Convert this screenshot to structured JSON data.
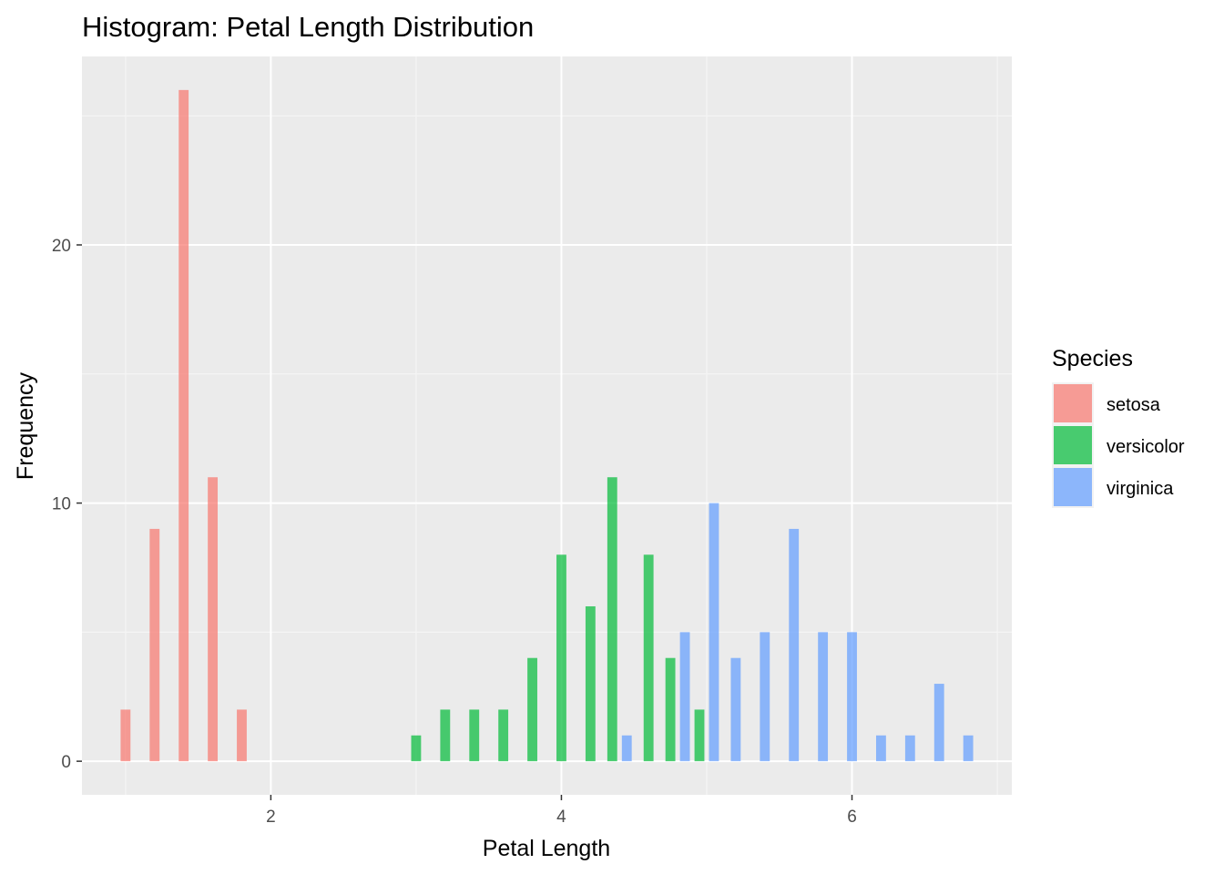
{
  "chart_data": {
    "type": "bar",
    "title": "Histogram: Petal Length Distribution",
    "xlabel": "Petal Length",
    "ylabel": "Frequency",
    "xlim": [
      0.7,
      7.1
    ],
    "ylim": [
      -1.3,
      27.3
    ],
    "x_ticks": [
      2,
      4,
      6
    ],
    "x_tick_labels": [
      "2",
      "4",
      "6"
    ],
    "y_ticks": [
      0,
      10,
      20
    ],
    "y_tick_labels": [
      "0",
      "10",
      "20"
    ],
    "x_minor_ticks": [
      1,
      3,
      5,
      7
    ],
    "y_minor_ticks": [
      5,
      15,
      25
    ],
    "bin_width": 0.2,
    "bar_position": "dodge",
    "grid": true,
    "legend": {
      "title": "Species",
      "placement": "right"
    },
    "series": [
      {
        "name": "setosa",
        "color": "#F8766D",
        "bins": [
          1.0,
          1.2,
          1.4,
          1.6,
          1.8
        ],
        "values": [
          2,
          9,
          26,
          11,
          2
        ]
      },
      {
        "name": "versicolor",
        "color": "#00BA38",
        "bins": [
          3.0,
          3.2,
          3.4,
          3.6,
          3.8,
          4.0,
          4.2,
          4.4,
          4.6,
          4.8,
          5.0
        ],
        "values": [
          1,
          2,
          2,
          2,
          4,
          8,
          6,
          11,
          8,
          4,
          2
        ]
      },
      {
        "name": "virginica",
        "color": "#619CFF",
        "bins": [
          4.4,
          4.8,
          5.0,
          5.2,
          5.4,
          5.6,
          5.8,
          6.0,
          6.2,
          6.4,
          6.6,
          6.8
        ],
        "values": [
          1,
          5,
          10,
          4,
          5,
          9,
          5,
          5,
          1,
          1,
          3,
          1
        ]
      }
    ]
  }
}
